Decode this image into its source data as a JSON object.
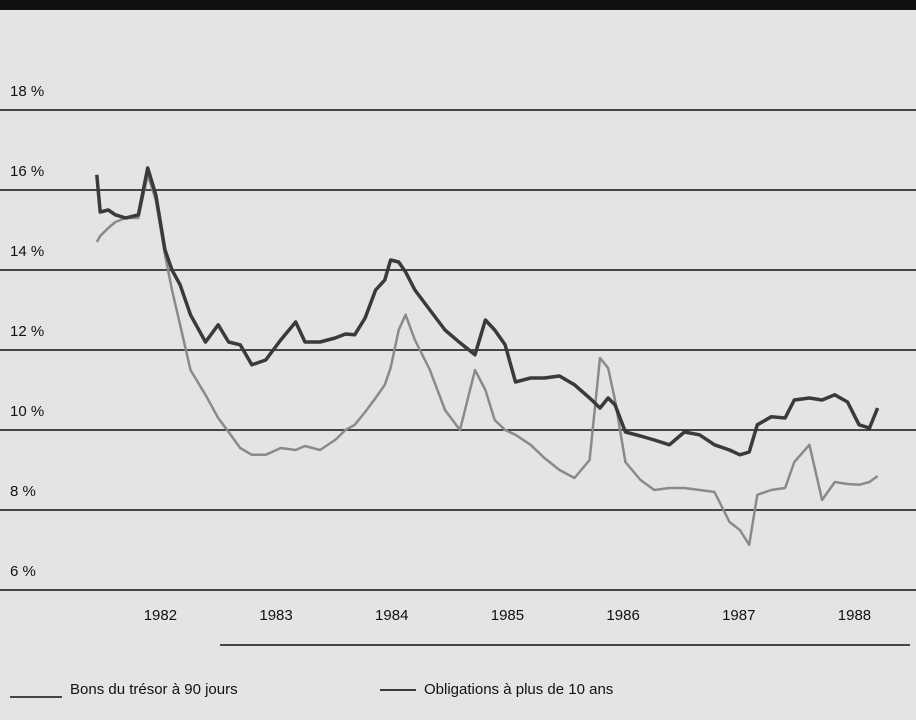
{
  "chart_data": {
    "type": "line",
    "x": [
      1981.45,
      1981.48,
      1981.55,
      1981.61,
      1981.7,
      1981.81,
      1981.89,
      1981.96,
      1982.04,
      1982.1,
      1982.17,
      1982.26,
      1982.39,
      1982.5,
      1982.59,
      1982.69,
      1982.79,
      1982.91,
      1983.04,
      1983.17,
      1983.25,
      1983.38,
      1983.51,
      1983.6,
      1983.68,
      1983.77,
      1983.86,
      1983.94,
      1983.99,
      1984.06,
      1984.12,
      1984.2,
      1984.33,
      1984.46,
      1984.59,
      1984.72,
      1984.81,
      1984.89,
      1984.98,
      1985.07,
      1985.2,
      1985.32,
      1985.45,
      1985.58,
      1985.71,
      1985.8,
      1985.87,
      1985.93,
      1986.02,
      1986.15,
      1986.27,
      1986.4,
      1986.53,
      1986.66,
      1986.79,
      1986.92,
      1987.01,
      1987.09,
      1987.16,
      1987.28,
      1987.4,
      1987.48,
      1987.61,
      1987.72,
      1987.83,
      1987.94,
      1988.04,
      1988.13,
      1988.2
    ],
    "series": [
      {
        "name": "Obligations à plus de 10 ans",
        "color": "#3a3a3a",
        "values": [
          16.38,
          15.45,
          15.5,
          15.38,
          15.3,
          15.38,
          16.55,
          15.88,
          14.5,
          14.0,
          13.63,
          12.88,
          12.2,
          12.63,
          12.2,
          12.13,
          11.63,
          11.75,
          12.25,
          12.7,
          12.2,
          12.2,
          12.3,
          12.4,
          12.38,
          12.8,
          13.5,
          13.75,
          14.25,
          14.2,
          13.95,
          13.5,
          13.0,
          12.5,
          12.18,
          11.88,
          12.75,
          12.5,
          12.13,
          11.2,
          11.3,
          11.3,
          11.35,
          11.13,
          10.8,
          10.55,
          10.8,
          10.63,
          9.95,
          9.85,
          9.75,
          9.63,
          9.95,
          9.88,
          9.63,
          9.5,
          9.38,
          9.45,
          10.13,
          10.33,
          10.3,
          10.75,
          10.8,
          10.75,
          10.88,
          10.7,
          10.13,
          10.05,
          10.55
        ]
      },
      {
        "name": "Bons du trésor à 90 jours",
        "color": "#8a8a8a",
        "values": [
          14.7,
          14.85,
          15.05,
          15.2,
          15.3,
          15.3,
          16.38,
          15.75,
          14.38,
          13.5,
          12.63,
          11.5,
          10.88,
          10.3,
          9.95,
          9.55,
          9.38,
          9.38,
          9.55,
          9.5,
          9.6,
          9.5,
          9.75,
          10.0,
          10.13,
          10.45,
          10.8,
          11.13,
          11.55,
          12.5,
          12.88,
          12.25,
          11.5,
          10.5,
          10.0,
          11.5,
          11.0,
          10.25,
          10.0,
          9.88,
          9.63,
          9.3,
          9.0,
          8.8,
          9.25,
          11.8,
          11.55,
          10.75,
          9.2,
          8.75,
          8.5,
          8.55,
          8.55,
          8.5,
          8.45,
          7.7,
          7.5,
          7.13,
          8.38,
          8.5,
          8.55,
          9.2,
          9.63,
          8.25,
          8.7,
          8.65,
          8.63,
          8.7,
          8.85
        ]
      }
    ],
    "xlim": [
      1980.7,
      1988.48
    ],
    "xticks": [
      1982,
      1983,
      1984,
      1985,
      1986,
      1987,
      1988
    ],
    "ylim": [
      5.75,
      20.5
    ],
    "yticks": [
      {
        "value": 6,
        "label": "6 %"
      },
      {
        "value": 8,
        "label": "8 %"
      },
      {
        "value": 10,
        "label": "10 %"
      },
      {
        "value": 12,
        "label": "12 %"
      },
      {
        "value": 14,
        "label": "14 %"
      },
      {
        "value": 16,
        "label": "16 %"
      },
      {
        "value": 18,
        "label": "18 %"
      }
    ],
    "grid": true
  }
}
